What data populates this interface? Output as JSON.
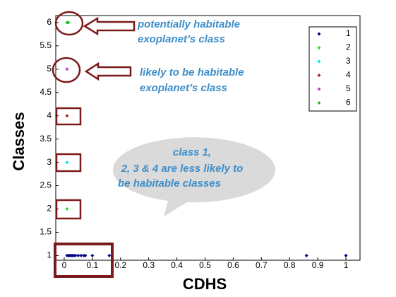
{
  "chart_data": {
    "type": "scatter",
    "x_label": "CDHS",
    "y_label": "Classes",
    "xlim": [
      -0.03,
      1.05
    ],
    "ylim": [
      0.9,
      6.15
    ],
    "xticks": [
      0,
      0.1,
      0.2,
      0.3,
      0.4,
      0.5,
      0.6,
      0.7,
      0.8,
      0.9,
      1
    ],
    "yticks": [
      1,
      1.5,
      2,
      2.5,
      3,
      3.5,
      4,
      4.5,
      5,
      5.5,
      6
    ],
    "legend": "top-right",
    "series": [
      {
        "name": "1",
        "color": "#00008b",
        "x": [
          0.01,
          0.015,
          0.02,
          0.025,
          0.03,
          0.035,
          0.04,
          0.05,
          0.06,
          0.07,
          0.075,
          0.1,
          0.16,
          0.86,
          1.0
        ],
        "values": [
          1,
          1,
          1,
          1,
          1,
          1,
          1,
          1,
          1,
          1,
          1,
          1,
          1,
          1,
          1
        ]
      },
      {
        "name": "2",
        "color": "#22dd22",
        "x": [
          0.01
        ],
        "values": [
          2
        ]
      },
      {
        "name": "3",
        "color": "#00e5e5",
        "x": [
          0.01
        ],
        "values": [
          3
        ]
      },
      {
        "name": "4",
        "color": "#b22222",
        "x": [
          0.01
        ],
        "values": [
          4
        ]
      },
      {
        "name": "5",
        "color": "#cc33cc",
        "x": [
          0.01
        ],
        "values": [
          5
        ]
      },
      {
        "name": "6",
        "color": "#22bb22",
        "x": [
          0.01,
          0.015
        ],
        "values": [
          6,
          6
        ]
      }
    ],
    "annotations": [
      [
        "potentially habitable",
        "exoplanet’s class"
      ],
      [
        "likely to be habitable",
        "exoplanet’s class"
      ],
      [
        "class 1,",
        "2, 3 & 4 are less likely to",
        "be habitable classes"
      ]
    ]
  }
}
